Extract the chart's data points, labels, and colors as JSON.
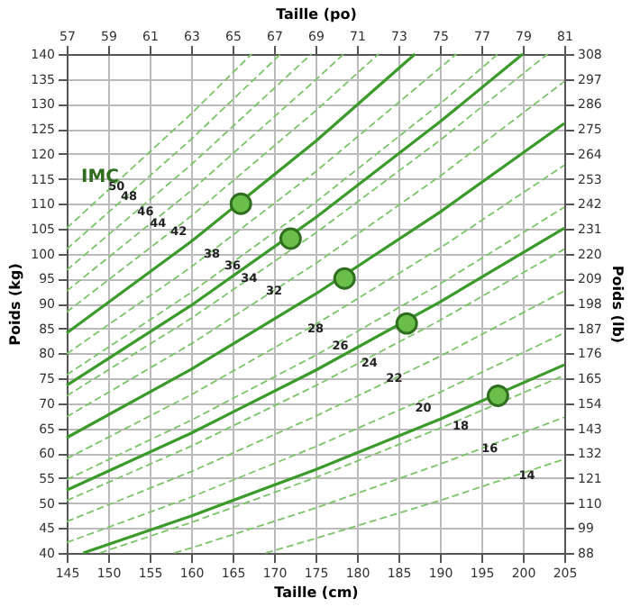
{
  "chart_data": {
    "type": "line",
    "xlabel": "Taille (cm)",
    "ylabel": "Poids (kg)",
    "x2label": "Taille (po)",
    "y2label": "Poids (lb)",
    "xlim": [
      145,
      205
    ],
    "xticks": [
      145,
      150,
      155,
      160,
      165,
      170,
      175,
      180,
      185,
      190,
      195,
      200,
      205
    ],
    "ylim": [
      40,
      140
    ],
    "yticks": [
      40,
      45,
      50,
      55,
      60,
      65,
      70,
      75,
      80,
      85,
      90,
      95,
      100,
      105,
      110,
      115,
      120,
      125,
      130,
      135,
      140
    ],
    "x2lim": [
      57,
      81
    ],
    "x2ticks": [
      57,
      59,
      61,
      63,
      65,
      67,
      69,
      71,
      73,
      75,
      77,
      79,
      81
    ],
    "y2lim": [
      88,
      308
    ],
    "y2ticks": [
      88,
      99,
      110,
      121,
      132,
      143,
      154,
      165,
      176,
      187,
      198,
      209,
      220,
      231,
      242,
      253,
      264,
      275,
      286,
      297,
      308
    ],
    "grid": true,
    "series": [
      {
        "line_style": "dashed",
        "color": "#7cc46a",
        "x": [
          169,
          175,
          190,
          205
        ],
        "values": [
          40,
          42.9,
          50.5,
          58.8
        ]
      },
      {
        "line_style": "dashed",
        "color": "#7cc46a",
        "x": [
          158,
          160,
          175,
          190,
          205
        ],
        "values": [
          40,
          41.0,
          49.0,
          57.8,
          67.2
        ]
      },
      {
        "line_style": "dashed",
        "color": "#7cc46a",
        "x": [
          149,
          160,
          175,
          190,
          205
        ],
        "values": [
          40,
          46.1,
          55.1,
          65.0,
          75.6
        ]
      },
      {
        "line_style": "solid",
        "color": "#3a9a2a",
        "x": [
          147,
          160,
          175,
          190,
          205
        ],
        "values": [
          40,
          47.4,
          56.7,
          66.8,
          77.7
        ]
      },
      {
        "line_style": "dashed",
        "color": "#7cc46a",
        "x": [
          145,
          160,
          175,
          190,
          205
        ],
        "values": [
          42.1,
          51.2,
          61.3,
          72.2,
          84.1
        ]
      },
      {
        "line_style": "dashed",
        "color": "#7cc46a",
        "x": [
          145,
          160,
          175,
          190,
          205
        ],
        "values": [
          46.3,
          56.3,
          67.4,
          79.4,
          92.5
        ]
      },
      {
        "line_style": "dashed",
        "color": "#7cc46a",
        "x": [
          145,
          160,
          175,
          190,
          205
        ],
        "values": [
          50.5,
          61.4,
          73.5,
          86.6,
          100.9
        ]
      },
      {
        "line_style": "solid",
        "color": "#3a9a2a",
        "x": [
          145,
          160,
          175,
          190,
          205
        ],
        "values": [
          52.6,
          64.0,
          76.6,
          90.3,
          105.1
        ]
      },
      {
        "line_style": "dashed",
        "color": "#7cc46a",
        "x": [
          145,
          160,
          175,
          190,
          205
        ],
        "values": [
          54.7,
          66.6,
          79.6,
          93.9,
          109.3
        ]
      },
      {
        "line_style": "dashed",
        "color": "#7cc46a",
        "x": [
          145,
          160,
          175,
          190,
          205
        ],
        "values": [
          58.9,
          71.7,
          85.8,
          101.1,
          117.7
        ]
      },
      {
        "line_style": "solid",
        "color": "#3a9a2a",
        "x": [
          145,
          160,
          175,
          190,
          205
        ],
        "values": [
          63.1,
          76.8,
          91.9,
          108.3,
          126.1
        ]
      },
      {
        "line_style": "dashed",
        "color": "#7cc46a",
        "x": [
          145,
          160,
          175,
          190,
          205
        ],
        "values": [
          67.3,
          81.9,
          98.0,
          115.5,
          134.5
        ]
      },
      {
        "line_style": "dashed",
        "color": "#7cc46a",
        "x": [
          145,
          160,
          175,
          190,
          203
        ],
        "values": [
          71.5,
          87.0,
          104.1,
          122.7,
          140
        ]
      },
      {
        "line_style": "solid",
        "color": "#3a9a2a",
        "x": [
          145,
          160,
          175,
          190,
          200
        ],
        "values": [
          73.6,
          89.6,
          107.2,
          126.4,
          140
        ]
      },
      {
        "line_style": "dashed",
        "color": "#7cc46a",
        "x": [
          145,
          160,
          175,
          190,
          197
        ],
        "values": [
          75.7,
          92.2,
          110.3,
          130.0,
          140
        ]
      },
      {
        "line_style": "dashed",
        "color": "#7cc46a",
        "x": [
          145,
          160,
          175,
          190,
          192
        ],
        "values": [
          79.9,
          97.3,
          116.4,
          137.2,
          140
        ]
      },
      {
        "line_style": "solid",
        "color": "#3a9a2a",
        "x": [
          145,
          160,
          175,
          187
        ],
        "values": [
          84.1,
          102.4,
          122.5,
          140
        ]
      },
      {
        "line_style": "dashed",
        "color": "#7cc46a",
        "x": [
          145,
          160,
          175,
          182.6
        ],
        "values": [
          88.3,
          107.5,
          128.6,
          140
        ]
      },
      {
        "line_style": "dashed",
        "color": "#7cc46a",
        "x": [
          145,
          160,
          175,
          178.4
        ],
        "values": [
          92.5,
          112.6,
          134.8,
          140
        ]
      },
      {
        "line_style": "dashed",
        "color": "#7cc46a",
        "x": [
          145,
          160,
          174.5
        ],
        "values": [
          96.7,
          117.8,
          140
        ]
      },
      {
        "line_style": "dashed",
        "color": "#7cc46a",
        "x": [
          145,
          160,
          170.8
        ],
        "values": [
          100.9,
          122.9,
          140
        ]
      },
      {
        "line_style": "dashed",
        "color": "#7cc46a",
        "x": [
          145,
          160,
          167.3
        ],
        "values": [
          105.1,
          128.0,
          140
        ]
      },
      {
        "type": "scatter",
        "marker": "circle",
        "color": "#6abf4b",
        "x": [
          166,
          172,
          178.5,
          186,
          197
        ],
        "values": [
          110,
          103,
          95,
          86,
          71.5
        ]
      }
    ],
    "annotations": [
      "IMC",
      {
        "text": "50",
        "x": 151,
        "y": 113.5
      },
      {
        "text": "48",
        "x": 152.5,
        "y": 111.5
      },
      {
        "text": "46",
        "x": 154.5,
        "y": 108.5
      },
      {
        "text": "44",
        "x": 156,
        "y": 106
      },
      {
        "text": "42",
        "x": 158.5,
        "y": 104.5
      },
      {
        "text": "38",
        "x": 162.5,
        "y": 100
      },
      {
        "text": "36",
        "x": 165,
        "y": 97.5
      },
      {
        "text": "34",
        "x": 167,
        "y": 95
      },
      {
        "text": "32",
        "x": 170,
        "y": 92.5
      },
      {
        "text": "28",
        "x": 175,
        "y": 85
      },
      {
        "text": "26",
        "x": 178,
        "y": 81.5
      },
      {
        "text": "24",
        "x": 181.5,
        "y": 78
      },
      {
        "text": "22",
        "x": 184.5,
        "y": 75
      },
      {
        "text": "20",
        "x": 188,
        "y": 69
      },
      {
        "text": "18",
        "x": 192.5,
        "y": 65.5
      },
      {
        "text": "16",
        "x": 196,
        "y": 61
      },
      {
        "text": "14",
        "x": 200.5,
        "y": 55.5
      }
    ]
  }
}
